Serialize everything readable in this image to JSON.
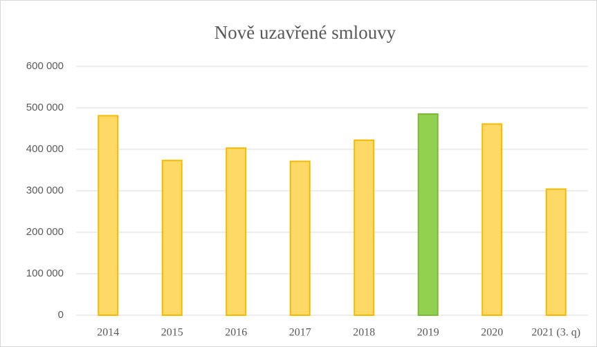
{
  "chart_data": {
    "type": "bar",
    "title": "Nově uzavřené smlouvy",
    "categories": [
      "2014",
      "2015",
      "2016",
      "2017",
      "2018",
      "2019",
      "2020",
      "2021 (3. q)"
    ],
    "values": [
      481000,
      373000,
      403000,
      371000,
      422000,
      485000,
      461000,
      304000
    ],
    "colors": [
      "#FFD966",
      "#FFD966",
      "#FFD966",
      "#FFD966",
      "#FFD966",
      "#92D050",
      "#FFD966",
      "#FFD966"
    ],
    "edge_colors": [
      "#F5BA00",
      "#F5BA00",
      "#F5BA00",
      "#F5BA00",
      "#F5BA00",
      "#7CB83A",
      "#F5BA00",
      "#F5BA00"
    ],
    "ylim": [
      0,
      600000
    ],
    "yticks": [
      {
        "value": 0,
        "label": "0"
      },
      {
        "value": 100000,
        "label": "100 000"
      },
      {
        "value": 200000,
        "label": "200 000"
      },
      {
        "value": 300000,
        "label": "300 000"
      },
      {
        "value": 400000,
        "label": "400 000"
      },
      {
        "value": 500000,
        "label": "500 000"
      },
      {
        "value": 600000,
        "label": "600 000"
      }
    ],
    "grid": true
  }
}
